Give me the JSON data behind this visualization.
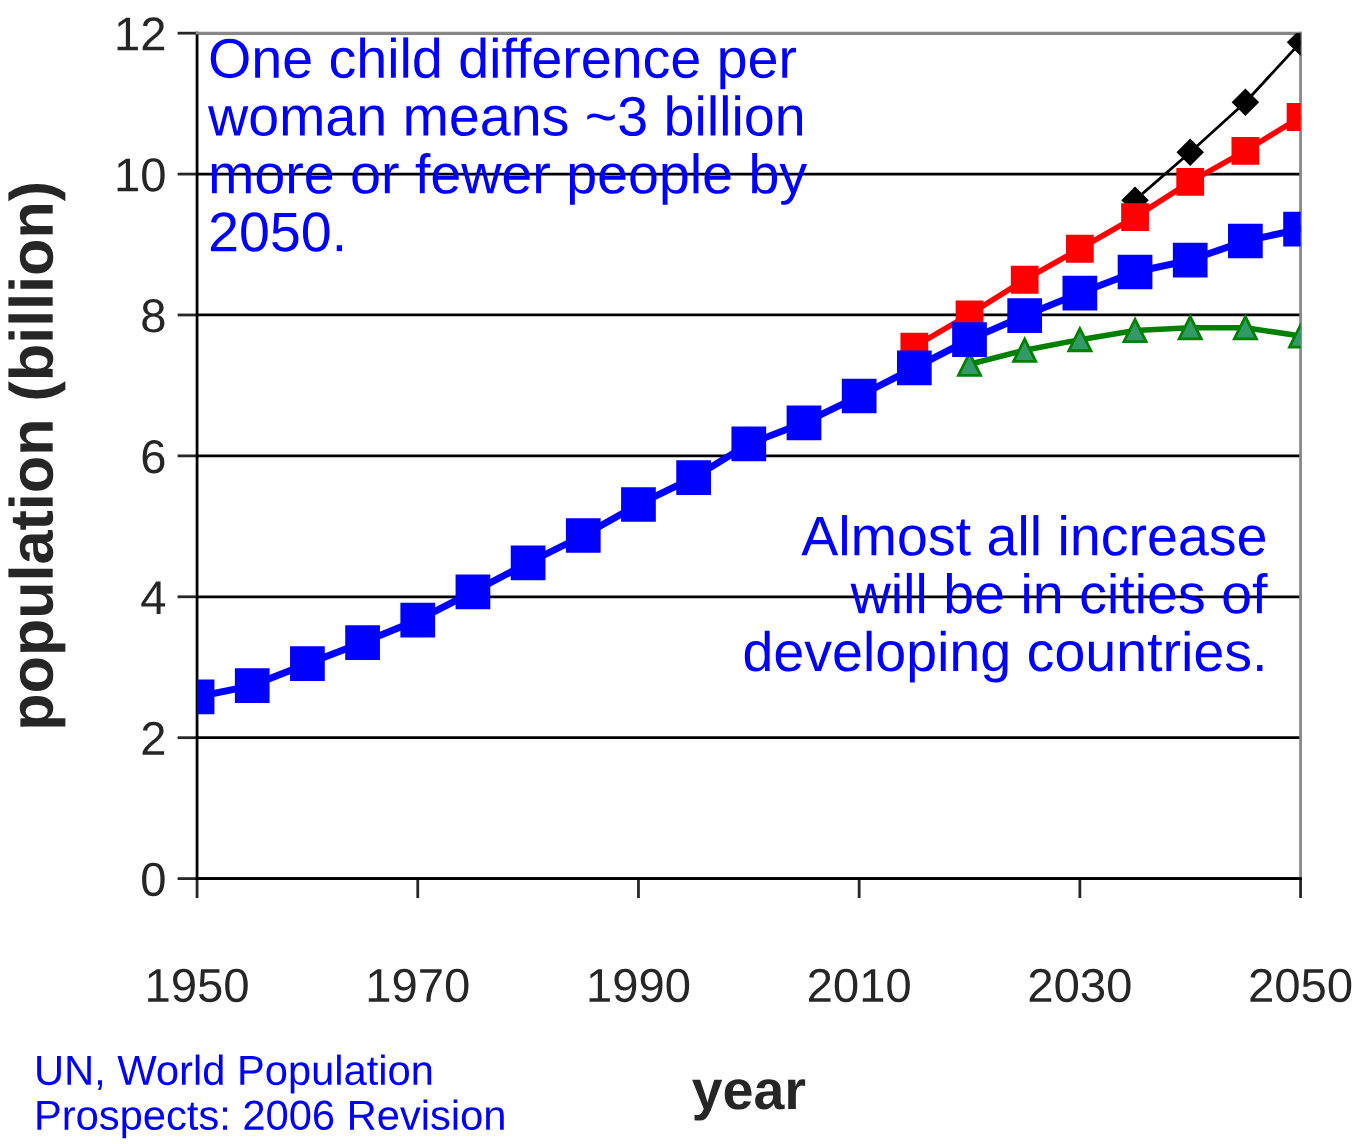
{
  "chart_data": {
    "type": "line",
    "xlabel": "year",
    "ylabel": "population (billion)",
    "xlim": [
      1950,
      2050
    ],
    "xticks": [
      1950,
      1970,
      1990,
      2010,
      2030,
      2050
    ],
    "ylim": [
      0,
      12
    ],
    "yticks": [
      0,
      2,
      4,
      6,
      8,
      10,
      12
    ],
    "grid": "y",
    "series": [
      {
        "color": "#000000",
        "marker": "diamond",
        "x": [
          2035,
          2040,
          2045,
          2050
        ],
        "values": [
          9.63,
          10.31,
          11.02,
          11.87
        ]
      },
      {
        "color": "#ff0000",
        "marker": "square",
        "x": [
          2015,
          2020,
          2025,
          2030,
          2035,
          2040,
          2045,
          2050
        ],
        "values": [
          7.55,
          8.01,
          8.5,
          8.94,
          9.39,
          9.89,
          10.33,
          10.81
        ]
      },
      {
        "color": "#008000",
        "marker": "triangle",
        "x": [
          2020,
          2025,
          2030,
          2035,
          2040,
          2045,
          2050
        ],
        "values": [
          7.3,
          7.5,
          7.65,
          7.78,
          7.82,
          7.82,
          7.7
        ]
      },
      {
        "color": "#0000ff",
        "marker": "square",
        "x": [
          1950,
          1955,
          1960,
          1965,
          1970,
          1975,
          1980,
          1985,
          1990,
          1995,
          2000,
          2005,
          2010,
          2015,
          2020,
          2025,
          2030,
          2035,
          2040,
          2045,
          2050
        ],
        "values": [
          2.58,
          2.74,
          3.05,
          3.35,
          3.67,
          4.07,
          4.48,
          4.87,
          5.31,
          5.69,
          6.17,
          6.47,
          6.85,
          7.25,
          7.65,
          7.99,
          8.31,
          8.61,
          8.78,
          9.05,
          9.22
        ]
      }
    ],
    "annotations": [
      "One child difference per\nwoman means ~3 billion\nmore or fewer people by\n2050.",
      "Almost all increase\nwill be in cities of\ndeveloping countries.",
      "UN, World Population\nProspects: 2006 Revision"
    ]
  }
}
